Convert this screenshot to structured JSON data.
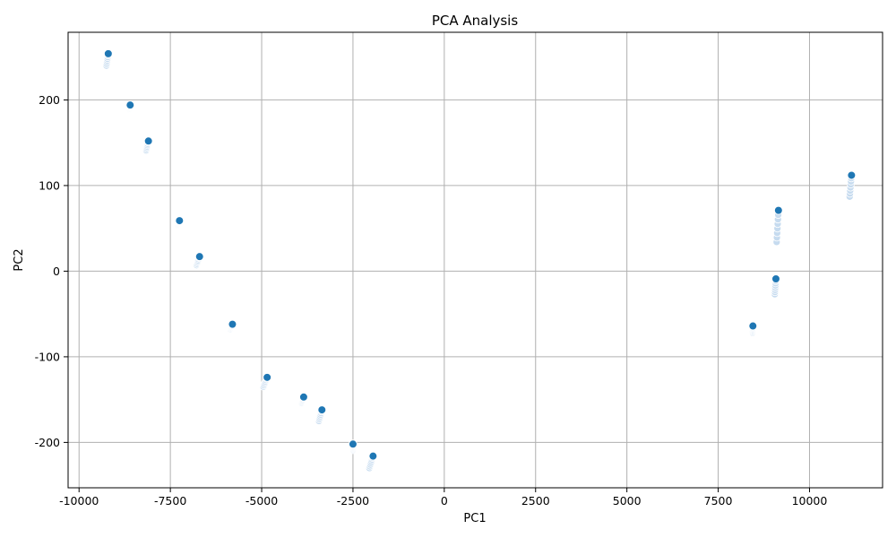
{
  "chart_data": {
    "type": "scatter",
    "title": "PCA Analysis",
    "xlabel": "PC1",
    "ylabel": "PC2",
    "xlim": [
      -10300,
      12000
    ],
    "ylim": [
      -253,
      279
    ],
    "x_ticks": [
      -10000,
      -7500,
      -5000,
      -2500,
      0,
      2500,
      5000,
      7500,
      10000
    ],
    "y_ticks": [
      -200,
      -100,
      0,
      100,
      200
    ],
    "grid": true,
    "point_color": "#1f77b4",
    "trail_color": "#c6dbef",
    "points": [
      {
        "x": -9200,
        "y": 254,
        "trail": [
          -9250,
          240
        ]
      },
      {
        "x": -8600,
        "y": 194,
        "trail": [
          -8620,
          189
        ]
      },
      {
        "x": -8100,
        "y": 152,
        "trail": [
          -8160,
          141
        ]
      },
      {
        "x": -7250,
        "y": 59,
        "trail": [
          -7300,
          54
        ]
      },
      {
        "x": -6700,
        "y": 17,
        "trail": [
          -6780,
          7
        ]
      },
      {
        "x": -5800,
        "y": -62,
        "trail": [
          -5850,
          -68
        ]
      },
      {
        "x": -4850,
        "y": -124,
        "trail": [
          -4950,
          -135
        ]
      },
      {
        "x": -3850,
        "y": -147,
        "trail": [
          -3900,
          -154
        ]
      },
      {
        "x": -3350,
        "y": -162,
        "trail": [
          -3430,
          -175
        ]
      },
      {
        "x": -2500,
        "y": -202,
        "trail": [
          -2500,
          -209
        ]
      },
      {
        "x": -1950,
        "y": -216,
        "trail": [
          -2050,
          -230
        ]
      },
      {
        "x": 8450,
        "y": -64,
        "trail": [
          8440,
          -72
        ]
      },
      {
        "x": 9080,
        "y": -9,
        "trail": [
          9050,
          -27
        ]
      },
      {
        "x": 9150,
        "y": 71,
        "trail": [
          9100,
          34
        ]
      },
      {
        "x": 11150,
        "y": 112,
        "trail": [
          11100,
          87
        ]
      }
    ]
  }
}
